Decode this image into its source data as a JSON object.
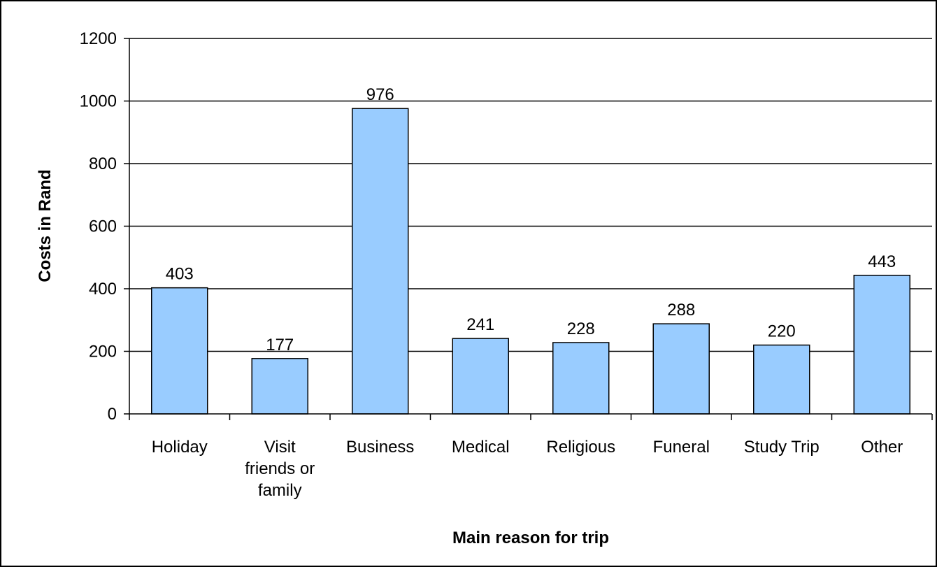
{
  "chart_data": {
    "type": "bar",
    "title": "",
    "xlabel": "Main reason for trip",
    "ylabel": "Costs in Rand",
    "categories": [
      [
        "Holiday"
      ],
      [
        "Visit",
        "friends or",
        "family"
      ],
      [
        "Business"
      ],
      [
        "Medical"
      ],
      [
        "Religious"
      ],
      [
        "Funeral"
      ],
      [
        "Study Trip"
      ],
      [
        "Other"
      ]
    ],
    "values": [
      403,
      177,
      976,
      241,
      228,
      288,
      220,
      443
    ],
    "data_labels": [
      "403",
      "177",
      "976",
      "241",
      "228",
      "288",
      "220",
      "443"
    ],
    "yticks": [
      "0",
      "200",
      "400",
      "600",
      "800",
      "1000",
      "1200"
    ],
    "ylim": [
      0,
      1200
    ],
    "ytick_step": 200,
    "grid": true,
    "legend": "none",
    "colors": {
      "bar_fill": "#99ccff",
      "bar_stroke": "#000000",
      "grid": "#000000",
      "frame": "#000000"
    }
  }
}
